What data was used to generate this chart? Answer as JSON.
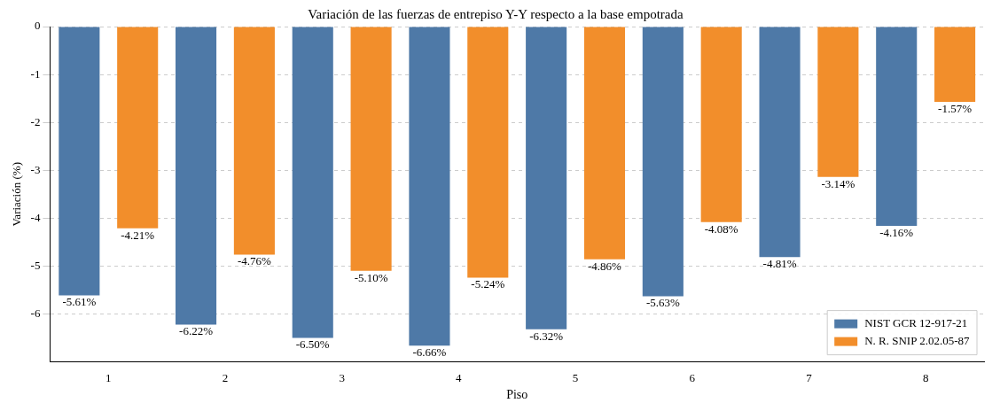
{
  "chart_data": {
    "type": "bar",
    "title": "Variación de las fuerzas de entrepiso Y-Y respecto a la base empotrada",
    "xlabel": "Piso",
    "ylabel": "Variación (%)",
    "categories": [
      "1",
      "2",
      "3",
      "4",
      "5",
      "6",
      "7",
      "8"
    ],
    "series": [
      {
        "name": "NIST GCR 12-917-21",
        "color": "#4e79a7",
        "values": [
          -5.61,
          -6.22,
          -6.5,
          -6.66,
          -6.32,
          -5.63,
          -4.81,
          -4.16
        ],
        "value_labels": [
          "-5.61%",
          "-6.22%",
          "-6.50%",
          "-6.66%",
          "-6.32%",
          "-5.63%",
          "-4.81%",
          "-4.16%"
        ]
      },
      {
        "name": "N. R. SNIP 2.02.05-87",
        "color": "#f28e2b",
        "values": [
          -4.21,
          -4.76,
          -5.1,
          -5.24,
          -4.86,
          -4.08,
          -3.14,
          -1.57
        ],
        "value_labels": [
          "-4.21%",
          "-4.76%",
          "-5.10%",
          "-5.24%",
          "-4.86%",
          "-4.08%",
          "-3.14%",
          "-1.57%"
        ]
      }
    ],
    "ylim": [
      -7,
      0
    ],
    "yticks": [
      0,
      -1,
      -2,
      -3,
      -4,
      -5,
      -6
    ],
    "grid": "y",
    "legend": "bottom right"
  }
}
